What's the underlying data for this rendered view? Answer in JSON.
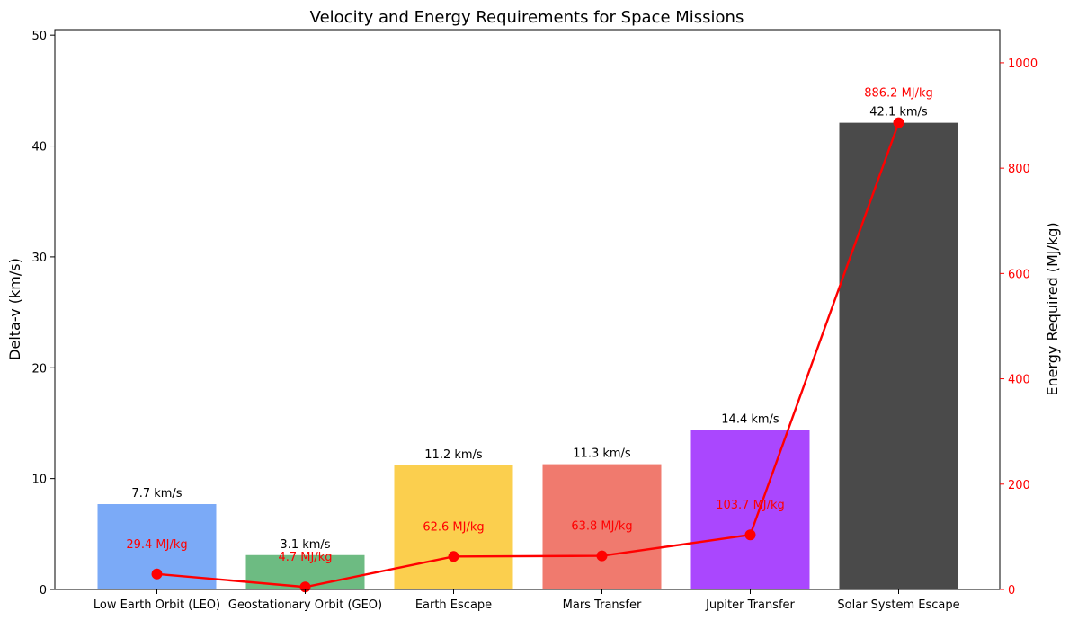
{
  "chart_data": {
    "type": "bar",
    "title": "Velocity and Energy Requirements for Space Missions",
    "xlabel": "",
    "ylabel": "Delta-v (km/s)",
    "y2label": "Energy Required (MJ/kg)",
    "ylim": [
      0,
      50.5
    ],
    "y2lim": [
      0,
      1063
    ],
    "yticks": [
      0,
      10,
      20,
      30,
      40,
      50
    ],
    "y2ticks": [
      0,
      200,
      400,
      600,
      800,
      1000
    ],
    "categories": [
      "Low Earth Orbit (LEO)",
      "Geostationary Orbit (GEO)",
      "Earth Escape",
      "Mars Transfer",
      "Jupiter Transfer",
      "Solar System Escape"
    ],
    "series": [
      {
        "axis": "left",
        "type": "bar",
        "values": [
          7.7,
          3.1,
          11.2,
          11.3,
          14.4,
          42.1
        ],
        "labels": [
          "7.7 km/s",
          "3.1 km/s",
          "11.2 km/s",
          "11.3 km/s",
          "14.4 km/s",
          "42.1 km/s"
        ],
        "colors": [
          "#7baaf7",
          "#6dbb82",
          "#fbcf4e",
          "#f07a6e",
          "#aa47fe",
          "#4a4a4a"
        ]
      },
      {
        "axis": "right",
        "type": "line",
        "values": [
          29.4,
          4.7,
          62.6,
          63.8,
          103.7,
          886.2
        ],
        "labels": [
          "29.4 MJ/kg",
          "4.7 MJ/kg",
          "62.6 MJ/kg",
          "63.8 MJ/kg",
          "103.7 MJ/kg",
          "886.2 MJ/kg"
        ],
        "color": "#ff0000"
      }
    ],
    "grid": false,
    "legend": "none"
  }
}
